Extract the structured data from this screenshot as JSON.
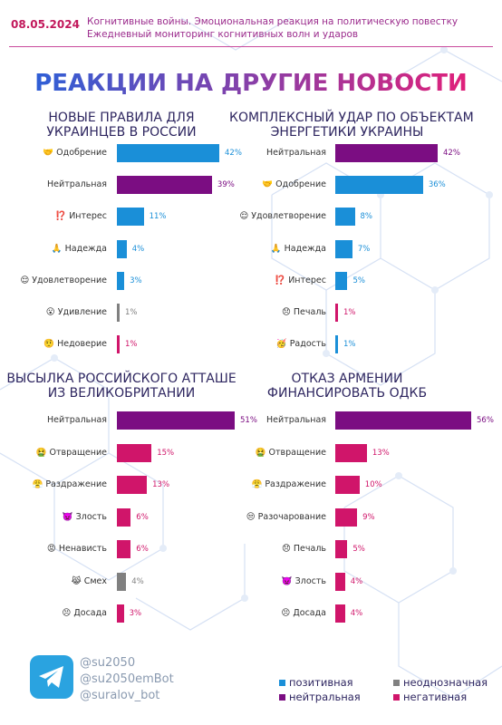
{
  "header": {
    "date": "08.05.2024",
    "line1": "Когнитивные войны. Эмоциональная реакция на политическую повестку",
    "line2": "Ежедневный мониторинг когнитивных волн и ударов"
  },
  "main_title": "РЕАКЦИИ НА ДРУГИЕ НОВОСТИ",
  "colors": {
    "positive": "#1a8fd8",
    "neutral": "#7b0d82",
    "ambiguous": "#808080",
    "negative": "#d0156a",
    "title_gradient_start": "#2f5fd6",
    "title_gradient_end": "#e0207a"
  },
  "chart_data": [
    {
      "type": "bar",
      "title_lines": [
        "НОВЫЕ ПРАВИЛА ДЛЯ",
        "УКРАИНЦЕВ В РОССИИ"
      ],
      "categories": [
        "Одобрение",
        "Нейтральная",
        "Интерес",
        "Надежда",
        "Удовлетворение",
        "Удивление",
        "Недоверие"
      ],
      "emoji": [
        "🤝",
        "",
        "⁉️",
        "🙏",
        "😌",
        "😮",
        "🤨"
      ],
      "values": [
        42,
        39,
        11,
        4,
        3,
        1,
        1
      ],
      "value_labels": [
        "42%",
        "39%",
        "11%",
        "4%",
        "3%",
        "1%",
        "1%"
      ],
      "groups": [
        "positive",
        "neutral",
        "positive",
        "positive",
        "positive",
        "ambiguous",
        "negative"
      ],
      "xlim": [
        0,
        42
      ]
    },
    {
      "type": "bar",
      "title_lines": [
        "КОМПЛЕКСНЫЙ УДАР ПО ОБЪЕКТАМ",
        "ЭНЕРГЕТИКИ УКРАИНЫ"
      ],
      "categories": [
        "Нейтральная",
        "Одобрение",
        "Удовлетворение",
        "Надежда",
        "Интерес",
        "Печаль",
        "Радость"
      ],
      "emoji": [
        "",
        "🤝",
        "😌",
        "🙏",
        "⁉️",
        "😞",
        "🥳"
      ],
      "values": [
        42,
        36,
        8,
        7,
        5,
        1,
        1
      ],
      "value_labels": [
        "42%",
        "36%",
        "8%",
        "7%",
        "5%",
        "1%",
        "1%"
      ],
      "groups": [
        "neutral",
        "positive",
        "positive",
        "positive",
        "positive",
        "negative",
        "positive"
      ],
      "xlim": [
        0,
        42
      ]
    },
    {
      "type": "bar",
      "title_lines": [
        "ВЫСЫЛКА РОССИЙСКОГО АТТАШЕ",
        "ИЗ ВЕЛИКОБРИТАНИИ"
      ],
      "categories": [
        "Нейтральная",
        "Отвращение",
        "Раздражение",
        "Злость",
        "Ненависть",
        "Смех",
        "Досада"
      ],
      "emoji": [
        "",
        "🤮",
        "😤",
        "👿",
        "😡",
        "😹",
        "😣"
      ],
      "values": [
        51,
        15,
        13,
        6,
        6,
        4,
        3
      ],
      "value_labels": [
        "51%",
        "15%",
        "13%",
        "6%",
        "6%",
        "4%",
        "3%"
      ],
      "groups": [
        "neutral",
        "negative",
        "negative",
        "negative",
        "negative",
        "ambiguous",
        "negative"
      ],
      "xlim": [
        0,
        51
      ]
    },
    {
      "type": "bar",
      "title_lines": [
        "ОТКАЗ АРМЕНИИ",
        "ФИНАНСИРОВАТЬ ОДКБ"
      ],
      "categories": [
        "Нейтральная",
        "Отвращение",
        "Раздражение",
        "Разочарование",
        "Печаль",
        "Злость",
        "Досада"
      ],
      "emoji": [
        "",
        "🤮",
        "😤",
        "😒",
        "😞",
        "👿",
        "😣"
      ],
      "values": [
        56,
        13,
        10,
        9,
        5,
        4,
        4
      ],
      "value_labels": [
        "56%",
        "13%",
        "10%",
        "9%",
        "5%",
        "4%",
        "4%"
      ],
      "groups": [
        "neutral",
        "negative",
        "negative",
        "negative",
        "negative",
        "negative",
        "negative"
      ],
      "xlim": [
        0,
        56
      ]
    }
  ],
  "footer": {
    "handles": [
      "@su2050",
      "@su2050emBot",
      "@suralov_bot"
    ],
    "telegram_icon": "telegram-icon"
  },
  "legend": [
    {
      "label": "позитивная",
      "group": "positive"
    },
    {
      "label": "неоднозначная",
      "group": "ambiguous"
    },
    {
      "label": "нейтральная",
      "group": "neutral"
    },
    {
      "label": "негативная",
      "group": "negative"
    }
  ]
}
